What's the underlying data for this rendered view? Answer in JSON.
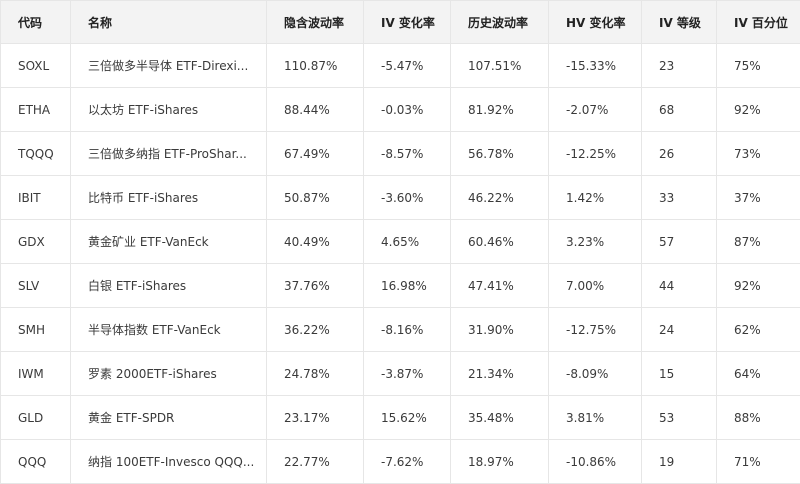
{
  "table": {
    "headers": [
      "代码",
      "名称",
      "隐含波动率",
      "IV 变化率",
      "历史波动率",
      "HV 变化率",
      "IV 等级",
      "IV 百分位"
    ],
    "rows": [
      [
        "SOXL",
        "三倍做多半导体 ETF-Direxi...",
        "110.87%",
        "-5.47%",
        "107.51%",
        "-15.33%",
        "23",
        "75%"
      ],
      [
        "ETHA",
        "以太坊 ETF-iShares",
        "88.44%",
        "-0.03%",
        "81.92%",
        "-2.07%",
        "68",
        "92%"
      ],
      [
        "TQQQ",
        "三倍做多纳指 ETF-ProShar...",
        "67.49%",
        "-8.57%",
        "56.78%",
        "-12.25%",
        "26",
        "73%"
      ],
      [
        "IBIT",
        "比特币 ETF-iShares",
        "50.87%",
        "-3.60%",
        "46.22%",
        "1.42%",
        "33",
        "37%"
      ],
      [
        "GDX",
        "黄金矿业 ETF-VanEck",
        "40.49%",
        "4.65%",
        "60.46%",
        "3.23%",
        "57",
        "87%"
      ],
      [
        "SLV",
        "白银 ETF-iShares",
        "37.76%",
        "16.98%",
        "47.41%",
        "7.00%",
        "44",
        "92%"
      ],
      [
        "SMH",
        "半导体指数 ETF-VanEck",
        "36.22%",
        "-8.16%",
        "31.90%",
        "-12.75%",
        "24",
        "62%"
      ],
      [
        "IWM",
        "罗素 2000ETF-iShares",
        "24.78%",
        "-3.87%",
        "21.34%",
        "-8.09%",
        "15",
        "64%"
      ],
      [
        "GLD",
        "黄金 ETF-SPDR",
        "23.17%",
        "15.62%",
        "35.48%",
        "3.81%",
        "53",
        "88%"
      ],
      [
        "QQQ",
        "纳指 100ETF-Invesco QQQ...",
        "22.77%",
        "-7.62%",
        "18.97%",
        "-10.86%",
        "19",
        "71%"
      ]
    ]
  }
}
